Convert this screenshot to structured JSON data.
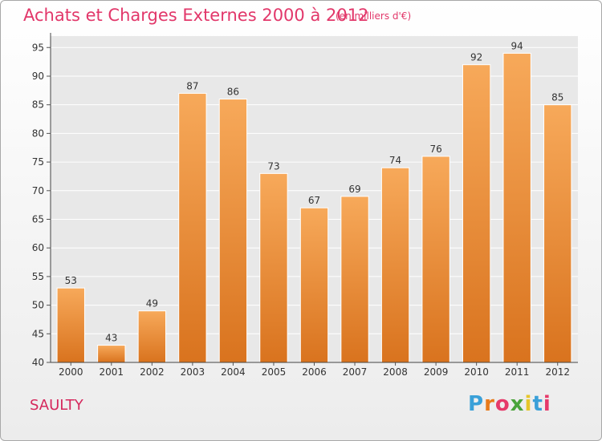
{
  "title": "Achats et Charges Externes 2000 à 2012",
  "subtitle": "(en milliers d'€)",
  "commune": "SAULTY",
  "logo": {
    "letters": [
      "P",
      "r",
      "o",
      "x",
      "i",
      "t",
      "i"
    ],
    "colors": [
      "#3aa0d8",
      "#e87a1a",
      "#e63a6a",
      "#4aa43a",
      "#e6c62a",
      "#3aa0d8",
      "#e63a6a"
    ]
  },
  "colors": {
    "bar_light": "#f7a95a",
    "bar_dark": "#d9731e",
    "title": "#e2376a"
  },
  "chart_data": {
    "type": "bar",
    "categories": [
      "2000",
      "2001",
      "2002",
      "2003",
      "2004",
      "2005",
      "2006",
      "2007",
      "2008",
      "2009",
      "2010",
      "2011",
      "2012"
    ],
    "values": [
      53,
      43,
      49,
      87,
      86,
      73,
      67,
      69,
      74,
      76,
      92,
      94,
      85
    ],
    "title": "Achats et Charges Externes 2000 à 2012",
    "xlabel": "",
    "ylabel": "",
    "ylim": [
      40,
      97
    ],
    "yticks": [
      40,
      45,
      50,
      55,
      60,
      65,
      70,
      75,
      80,
      85,
      90,
      95
    ],
    "grid": true
  }
}
